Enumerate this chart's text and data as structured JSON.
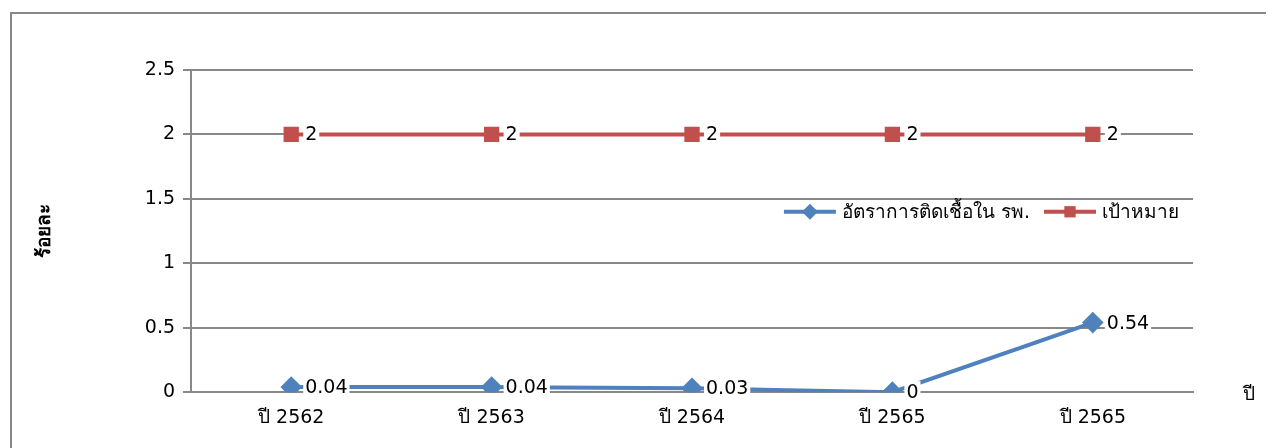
{
  "chart_data": {
    "type": "line",
    "xlabel": "ปี",
    "ylabel": "ร้อยละ",
    "categories": [
      "ปี 2562",
      "ปี 2563",
      "ปี 2564",
      "ปี 2565",
      "ปี 2565"
    ],
    "series": [
      {
        "name": "อัตราการติดเชื้อใน รพ.",
        "color": "#4f81bd",
        "marker": "diamond",
        "values": [
          0.04,
          0.04,
          0.03,
          0,
          0.54
        ]
      },
      {
        "name": "เป้าหมาย",
        "color": "#c0504d",
        "marker": "square",
        "values": [
          2,
          2,
          2,
          2,
          2
        ]
      }
    ],
    "ylim": [
      0,
      2.5
    ],
    "yticks": [
      0,
      0.5,
      1,
      1.5,
      2,
      2.5
    ],
    "grid": "y",
    "legend": "right",
    "data_labels": true
  }
}
